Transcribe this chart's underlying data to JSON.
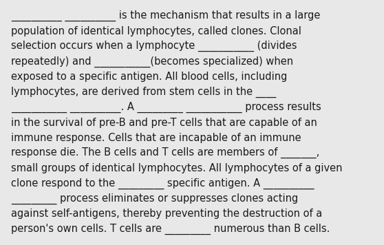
{
  "background_color": "#e8e8e8",
  "text_color": "#1a1a1a",
  "font_size": 10.5,
  "font_family": "DejaVu Sans",
  "padding": 0.04,
  "lines": [
    "__________ __________ is the mechanism that results in a large",
    "population of identical lymphocytes, called clones. Clonal",
    "selection occurs when a lymphocyte ___________ (divides",
    "repeatedly) and ___________(becomes specialized) when",
    "exposed to a specific antigen. All blood cells, including",
    "lymphocytes, are derived from stem cells in the ____",
    "___________ __________. A _________ ___________ process results",
    "in the survival of pre-B and pre-T cells that are capable of an",
    "immune response. Cells that are incapable of an immune",
    "response die. The B cells and T cells are members of _______,",
    "small groups of identical lymphocytes. All lymphocytes of a given",
    "clone respond to the _________ specific antigen. A __________",
    "_________ process eliminates or suppresses clones acting",
    "against self-antigens, thereby preventing the destruction of a",
    "person's own cells. T cells are _________ numerous than B cells."
  ]
}
